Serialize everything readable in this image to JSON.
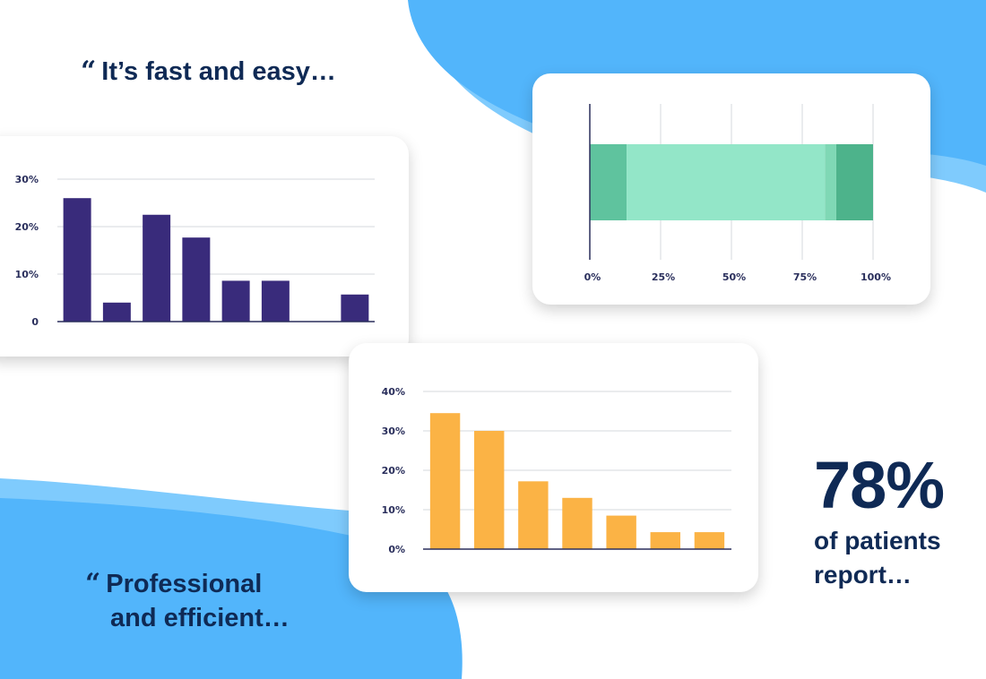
{
  "quotes": {
    "first": "It’s fast and easy…",
    "second_line1": "Professional",
    "second_line2": "and efficient…",
    "mark": "“"
  },
  "stat": {
    "value": "78%",
    "line1": "of patients",
    "line2": "report…"
  },
  "colors": {
    "navy_text": "#0f2a55",
    "blue_blob": "#52b5fb",
    "light_blue_blob": "#7fcbfd",
    "purple_bars": "#392b7b",
    "orange_bars": "#fbb345",
    "green_dark": "#4db38b",
    "green_mid": "#5fc39e",
    "green_light": "#93e6c8",
    "green_pale": "#7fd8b5"
  },
  "chart_data": [
    {
      "type": "bar",
      "categories": [
        "",
        "",
        "",
        "",
        "",
        "",
        "",
        ""
      ],
      "values": [
        26,
        4,
        22.5,
        17.7,
        8.6,
        8.6,
        0,
        5.7
      ],
      "ylim": [
        0,
        30
      ],
      "yticks": [
        0,
        10,
        20,
        30
      ],
      "ytick_labels": [
        "0",
        "10%",
        "20%",
        "30%"
      ],
      "grid": true
    },
    {
      "type": "bar",
      "orientation": "horizontal-stacked",
      "segments": [
        {
          "value": 13,
          "color": "#5fc39e"
        },
        {
          "value": 70,
          "color": "#93e6c8"
        },
        {
          "value": 4,
          "color": "#7fd8b5"
        },
        {
          "value": 13,
          "color": "#4db38b"
        }
      ],
      "xlim": [
        0,
        100
      ],
      "xticks": [
        0,
        25,
        50,
        75,
        100
      ],
      "xtick_labels": [
        "0%",
        "25%",
        "50%",
        "75%",
        "100%"
      ],
      "grid": true
    },
    {
      "type": "bar",
      "categories": [
        "",
        "",
        "",
        "",
        "",
        "",
        ""
      ],
      "values": [
        34.5,
        30,
        17.2,
        13,
        8.5,
        4.3,
        4.3
      ],
      "ylim": [
        0,
        40
      ],
      "yticks": [
        0,
        10,
        20,
        30,
        40
      ],
      "ytick_labels": [
        "0%",
        "10%",
        "20%",
        "30%",
        "40%"
      ],
      "grid": true
    }
  ]
}
